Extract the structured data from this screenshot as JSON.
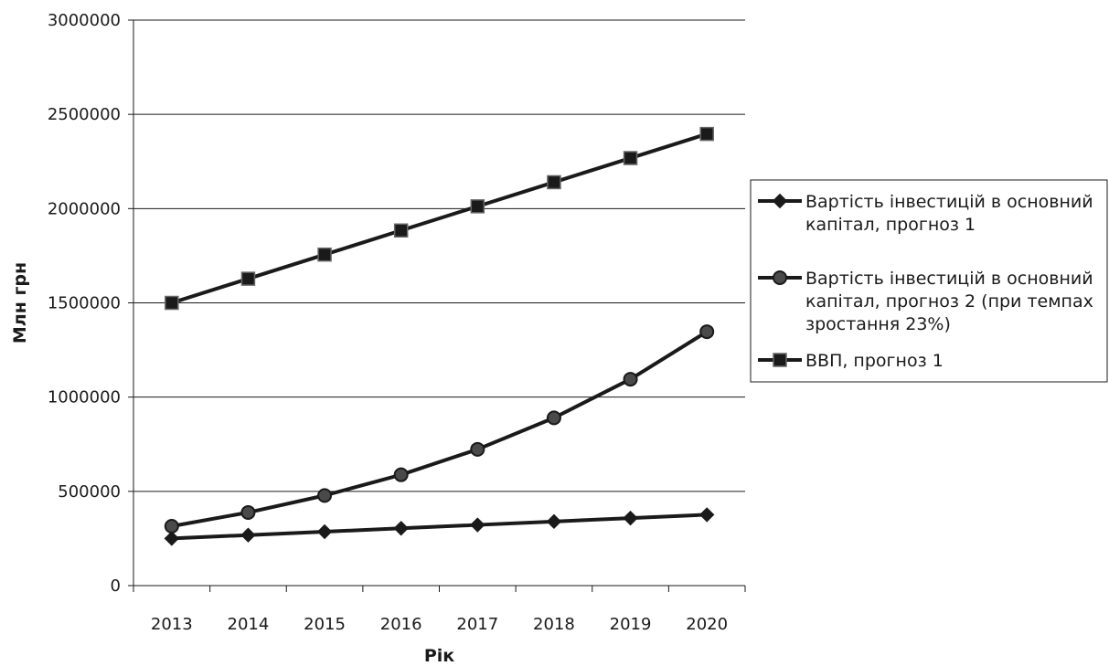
{
  "chart_data": {
    "type": "line",
    "xlabel": "Рік",
    "ylabel": "Млн грн",
    "ylim": [
      0,
      3000000
    ],
    "yticks": [
      0,
      500000,
      1000000,
      1500000,
      2000000,
      2500000,
      3000000
    ],
    "grid": true,
    "legend_position": "right",
    "x": [
      "2013",
      "2014",
      "2015",
      "2016",
      "2017",
      "2018",
      "2019",
      "2020"
    ],
    "series": [
      {
        "name": "Вартість інвестицій в основний капітал, прогноз 1",
        "legend_lines": [
          "Вартість інвестицій в основний",
          "капітал, прогноз 1"
        ],
        "marker": "diamond",
        "color": "#1a1a1a",
        "values": [
          250000,
          268000,
          286000,
          304000,
          322000,
          340000,
          358000,
          376000
        ]
      },
      {
        "name": "Вартість інвестицій в основний капітал, прогноз 2 (при темпах зростання 23%)",
        "legend_lines": [
          "Вартість інвестицій в основний",
          "капітал, прогноз 2 (при темпах",
          "зростання 23%)"
        ],
        "marker": "circle",
        "color": "#1a1a1a",
        "values": [
          315000,
          388000,
          478000,
          588000,
          723000,
          890000,
          1095000,
          1347000
        ]
      },
      {
        "name": "ВВП, прогноз 1",
        "legend_lines": [
          "ВВП, прогноз 1"
        ],
        "marker": "square",
        "color": "#1a1a1a",
        "values": [
          1500000,
          1628000,
          1756000,
          1884000,
          2012000,
          2140000,
          2268000,
          2396000
        ]
      }
    ]
  }
}
